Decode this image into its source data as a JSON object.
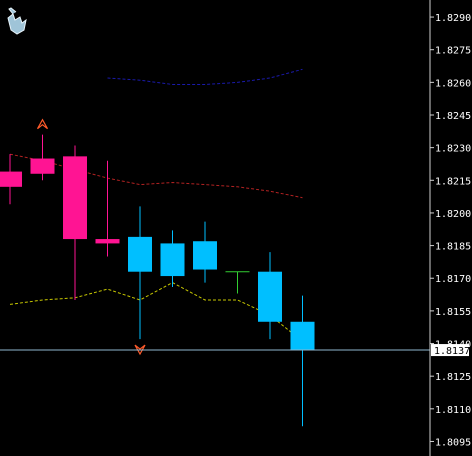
{
  "chart_data": {
    "type": "candlestick",
    "y_ticks": [
      1.829,
      1.8275,
      1.826,
      1.8245,
      1.823,
      1.8215,
      1.82,
      1.8185,
      1.817,
      1.8155,
      1.814,
      1.8125,
      1.811,
      1.8095
    ],
    "y_ticks_text": [
      "1.8290",
      "1.8275",
      "1.8260",
      "1.8245",
      "1.8230",
      "1.8215",
      "1.8200",
      "1.8185",
      "1.8170",
      "1.8155",
      "1.8140",
      "1.8125",
      "1.8110",
      "1.8095"
    ],
    "ylim": [
      1.8092,
      1.8296
    ],
    "current_price": 1.8137,
    "current_price_text": "1.8137",
    "candles": [
      {
        "open": 1.8219,
        "high": 1.8227,
        "low": 1.8204,
        "close": 1.8212
      },
      {
        "open": 1.8225,
        "high": 1.8236,
        "low": 1.8215,
        "close": 1.8218
      },
      {
        "open": 1.8226,
        "high": 1.8231,
        "low": 1.816,
        "close": 1.8188
      },
      {
        "open": 1.8188,
        "high": 1.8224,
        "low": 1.818,
        "close": 1.8186
      },
      {
        "open": 1.8173,
        "high": 1.8203,
        "low": 1.8142,
        "close": 1.8189
      },
      {
        "open": 1.8171,
        "high": 1.8192,
        "low": 1.8166,
        "close": 1.8186
      },
      {
        "open": 1.8174,
        "high": 1.8196,
        "low": 1.8168,
        "close": 1.8187
      },
      {
        "open": 1.8173,
        "high": 1.8173,
        "low": 1.8163,
        "close": 1.8173
      },
      {
        "open": 1.815,
        "high": 1.8182,
        "low": 1.8142,
        "close": 1.8173
      },
      {
        "open": 1.8137,
        "high": 1.8162,
        "low": 1.8102,
        "close": 1.815
      }
    ],
    "upper_band": [
      null,
      null,
      null,
      1.8262,
      1.8261,
      1.8259,
      1.8259,
      1.826,
      1.8262,
      1.8266
    ],
    "middle_band": [
      1.8227,
      1.8224,
      1.822,
      1.8216,
      1.8213,
      1.8214,
      1.8213,
      1.8212,
      1.821,
      1.8207
    ],
    "lower_band": [
      1.8158,
      1.816,
      1.8161,
      1.8165,
      1.816,
      1.8168,
      1.816,
      1.816,
      1.8153,
      1.8141
    ],
    "arrows": [
      {
        "index": 1,
        "price": 1.8241,
        "direction": "up"
      },
      {
        "index": 4,
        "price": 1.8137,
        "direction": "down"
      }
    ],
    "colors": {
      "background": "#000000",
      "bull": "#00bfff",
      "bear": "#ff1493",
      "doji": "#32cd32",
      "upper_band": "#1a1aaa",
      "middle_band": "#b22222",
      "lower_band": "#c8c800",
      "arrow": "#ff5a2a",
      "axis": "#d0d0d0",
      "price_line": "#8fb7cf"
    },
    "scale_icon": "hand-cursor-icon",
    "grid": false
  }
}
